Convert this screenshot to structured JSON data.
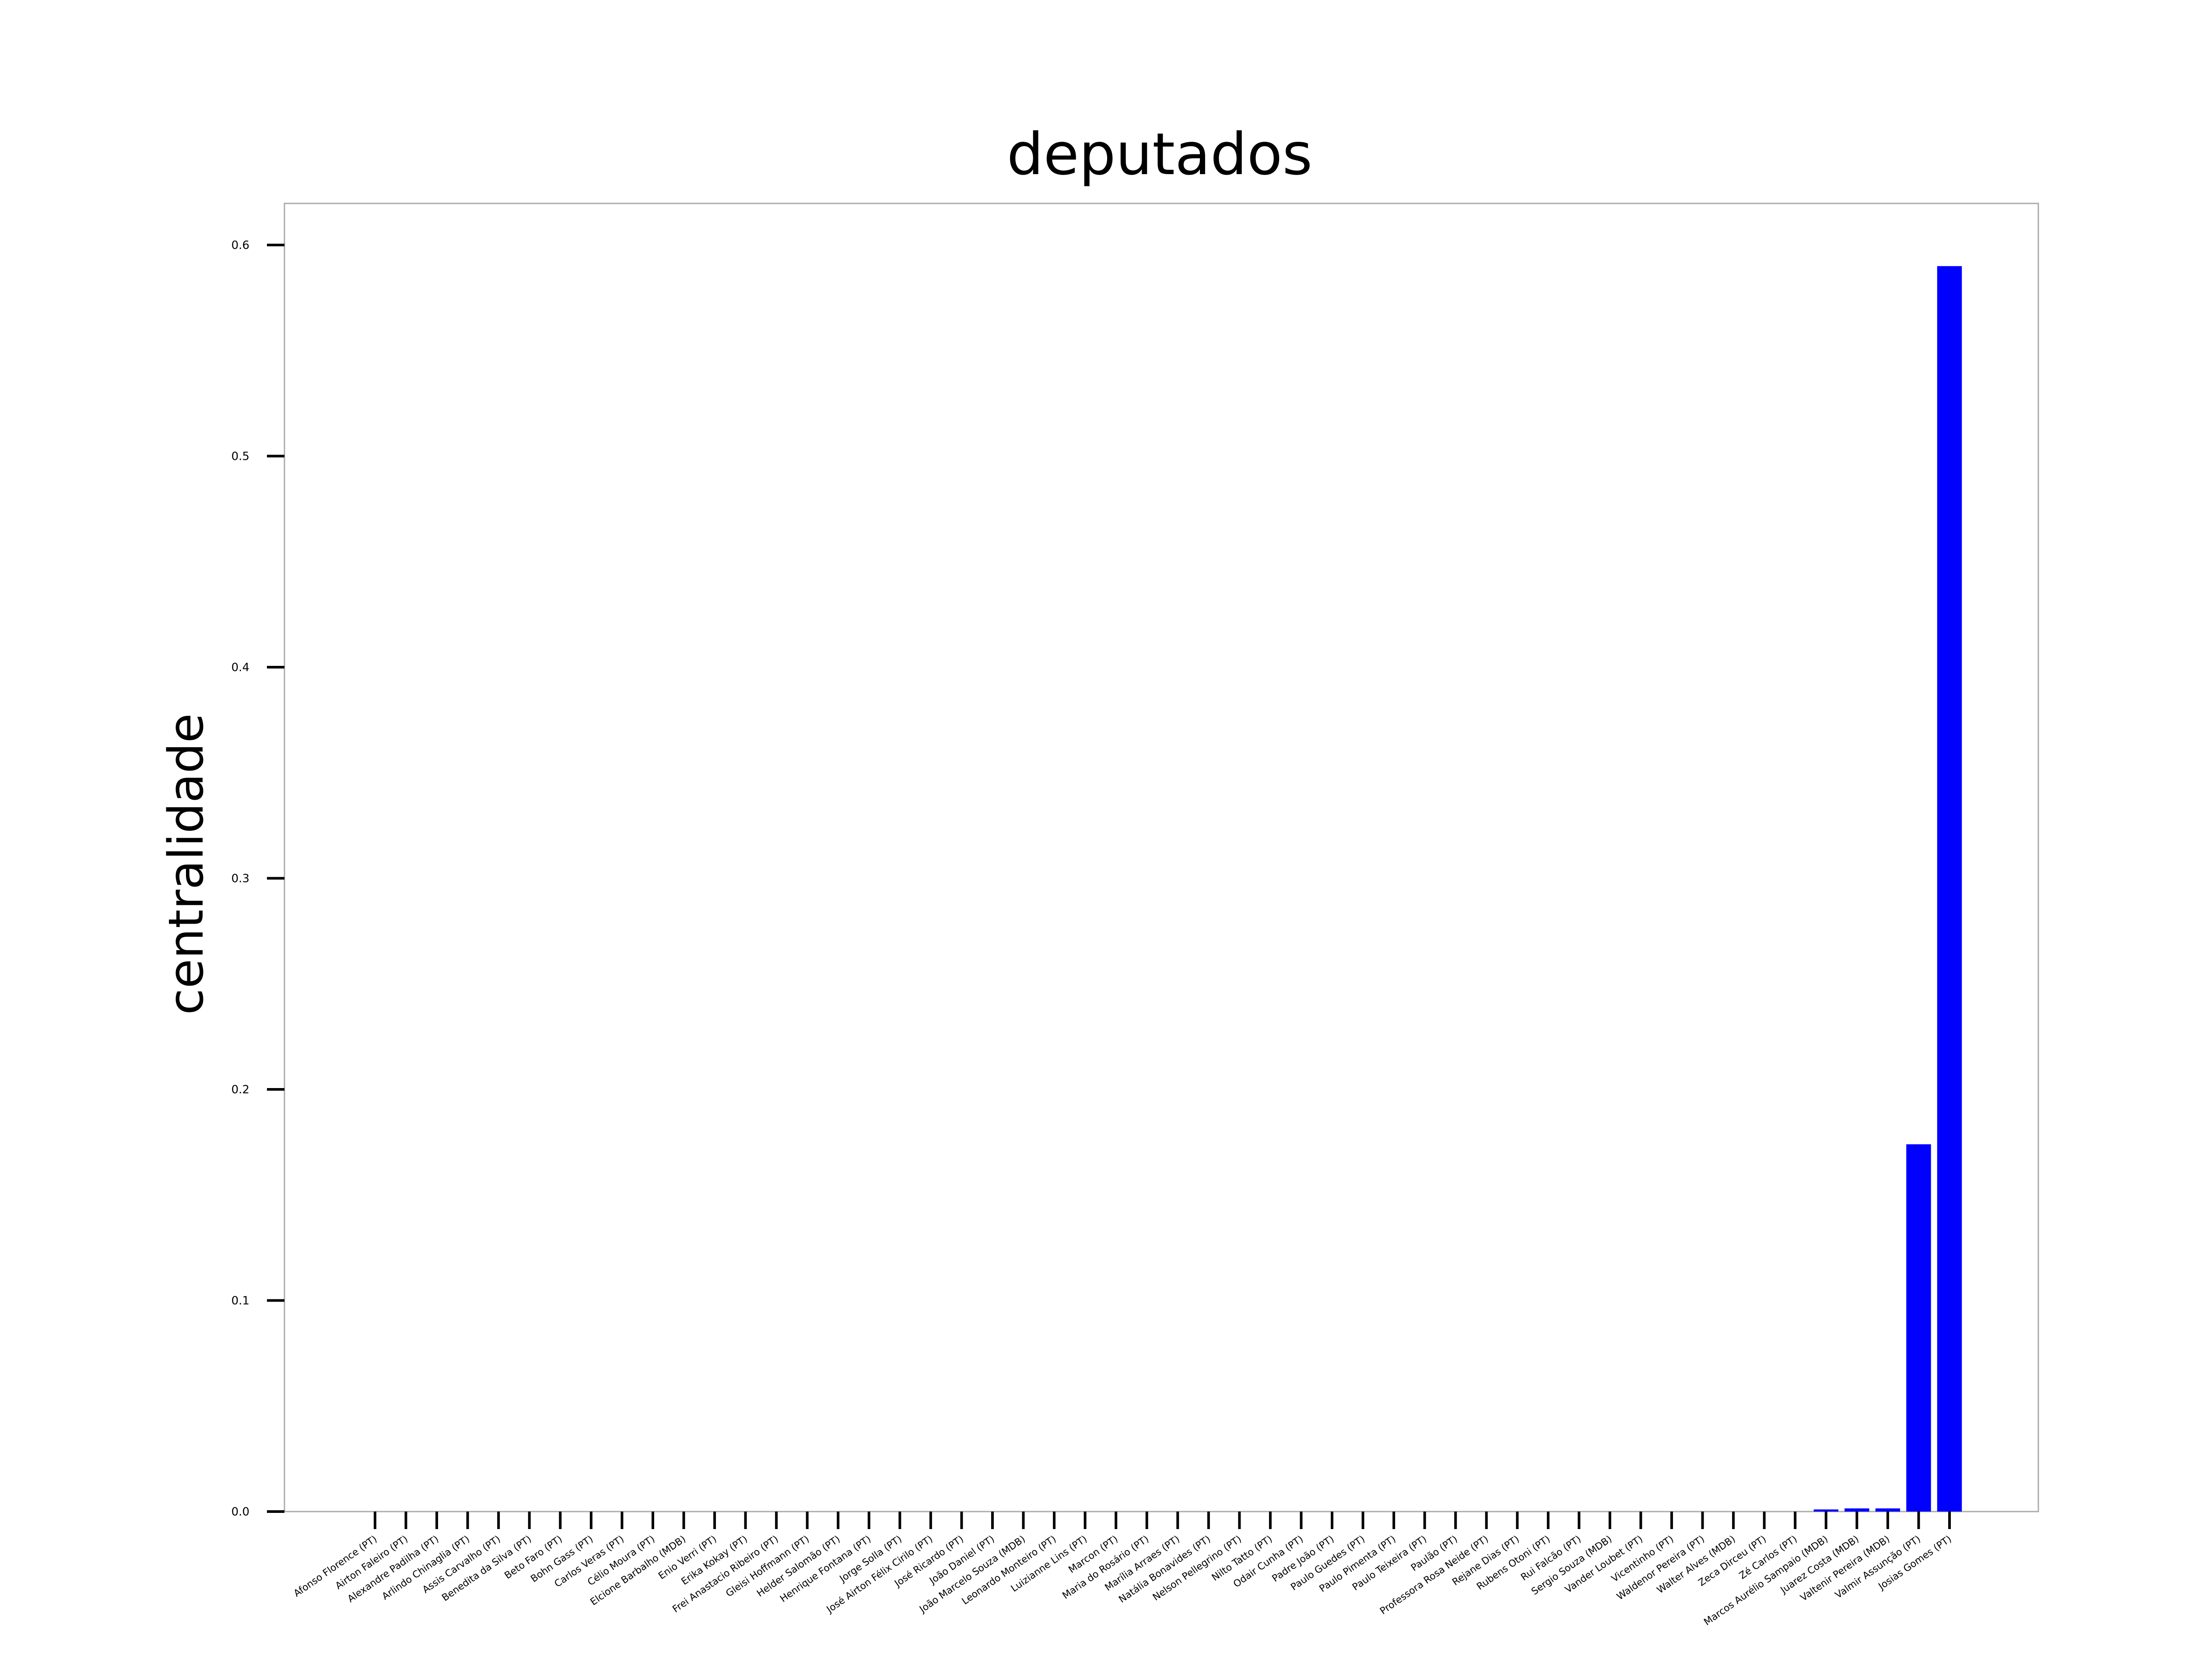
{
  "chart_data": {
    "type": "bar",
    "title": "deputados",
    "xlabel": "",
    "ylabel": "centralidade",
    "ylim": [
      0,
      0.62
    ],
    "yticks": [
      "0.0",
      "0.1",
      "0.2",
      "0.3",
      "0.4",
      "0.5",
      "0.6"
    ],
    "grid": false,
    "bar_color": "#0000ff",
    "categories": [
      "Afonso Florence (PT)",
      "Airton Faleiro (PT)",
      "Alexandre Padilha (PT)",
      "Arlindo Chinaglia (PT)",
      "Assis Carvalho (PT)",
      "Benedita da Silva (PT)",
      "Beto Faro (PT)",
      "Bohn Gass (PT)",
      "Carlos Veras (PT)",
      "Célio Moura (PT)",
      "Elcione Barbalho (MDB)",
      "Enio Verri (PT)",
      "Erika Kokay (PT)",
      "Frei Anastacio Ribeiro (PT)",
      "Gleisi Hoffmann (PT)",
      "Helder Salomão (PT)",
      "Henrique Fontana (PT)",
      "Jorge Solla (PT)",
      "José Airton Félix Cirilo (PT)",
      "José Ricardo (PT)",
      "João Daniel (PT)",
      "João Marcelo Souza (MDB)",
      "Leonardo Monteiro (PT)",
      "Luizianne Lins (PT)",
      "Marcon (PT)",
      "Maria do Rosário (PT)",
      "Marília Arraes (PT)",
      "Natália Bonavides (PT)",
      "Nelson Pellegrino (PT)",
      "Nilto Tatto (PT)",
      "Odair Cunha (PT)",
      "Padre João (PT)",
      "Paulo Guedes (PT)",
      "Paulo Pimenta (PT)",
      "Paulo Teixeira (PT)",
      "Paulão (PT)",
      "Professora Rosa Neide (PT)",
      "Rejane Dias (PT)",
      "Rubens Otoni (PT)",
      "Rui Falcão (PT)",
      "Sergio Souza (MDB)",
      "Vander Loubet (PT)",
      "Vicentinho (PT)",
      "Waldenor Pereira (PT)",
      "Walter Alves (MDB)",
      "Zeca Dirceu (PT)",
      "Zé Carlos (PT)",
      "Marcos Aurélio Sampaio (MDB)",
      "Juarez Costa (MDB)",
      "Valtenir Pereira (MDB)",
      "Valmir Assunção (PT)",
      "Josias Gomes (PT)"
    ],
    "values": [
      0,
      0,
      0,
      0,
      0,
      0,
      0,
      0,
      0,
      0,
      0,
      0,
      0,
      0,
      0,
      0,
      0,
      0,
      0,
      0,
      0,
      0,
      0,
      0,
      0,
      0,
      0,
      0,
      0,
      0,
      0,
      0,
      0,
      0,
      0,
      0,
      0,
      0,
      0,
      0,
      0,
      0,
      0,
      0,
      0,
      0,
      0,
      0.001,
      0.0015,
      0.0015,
      0.174,
      0.59
    ]
  }
}
